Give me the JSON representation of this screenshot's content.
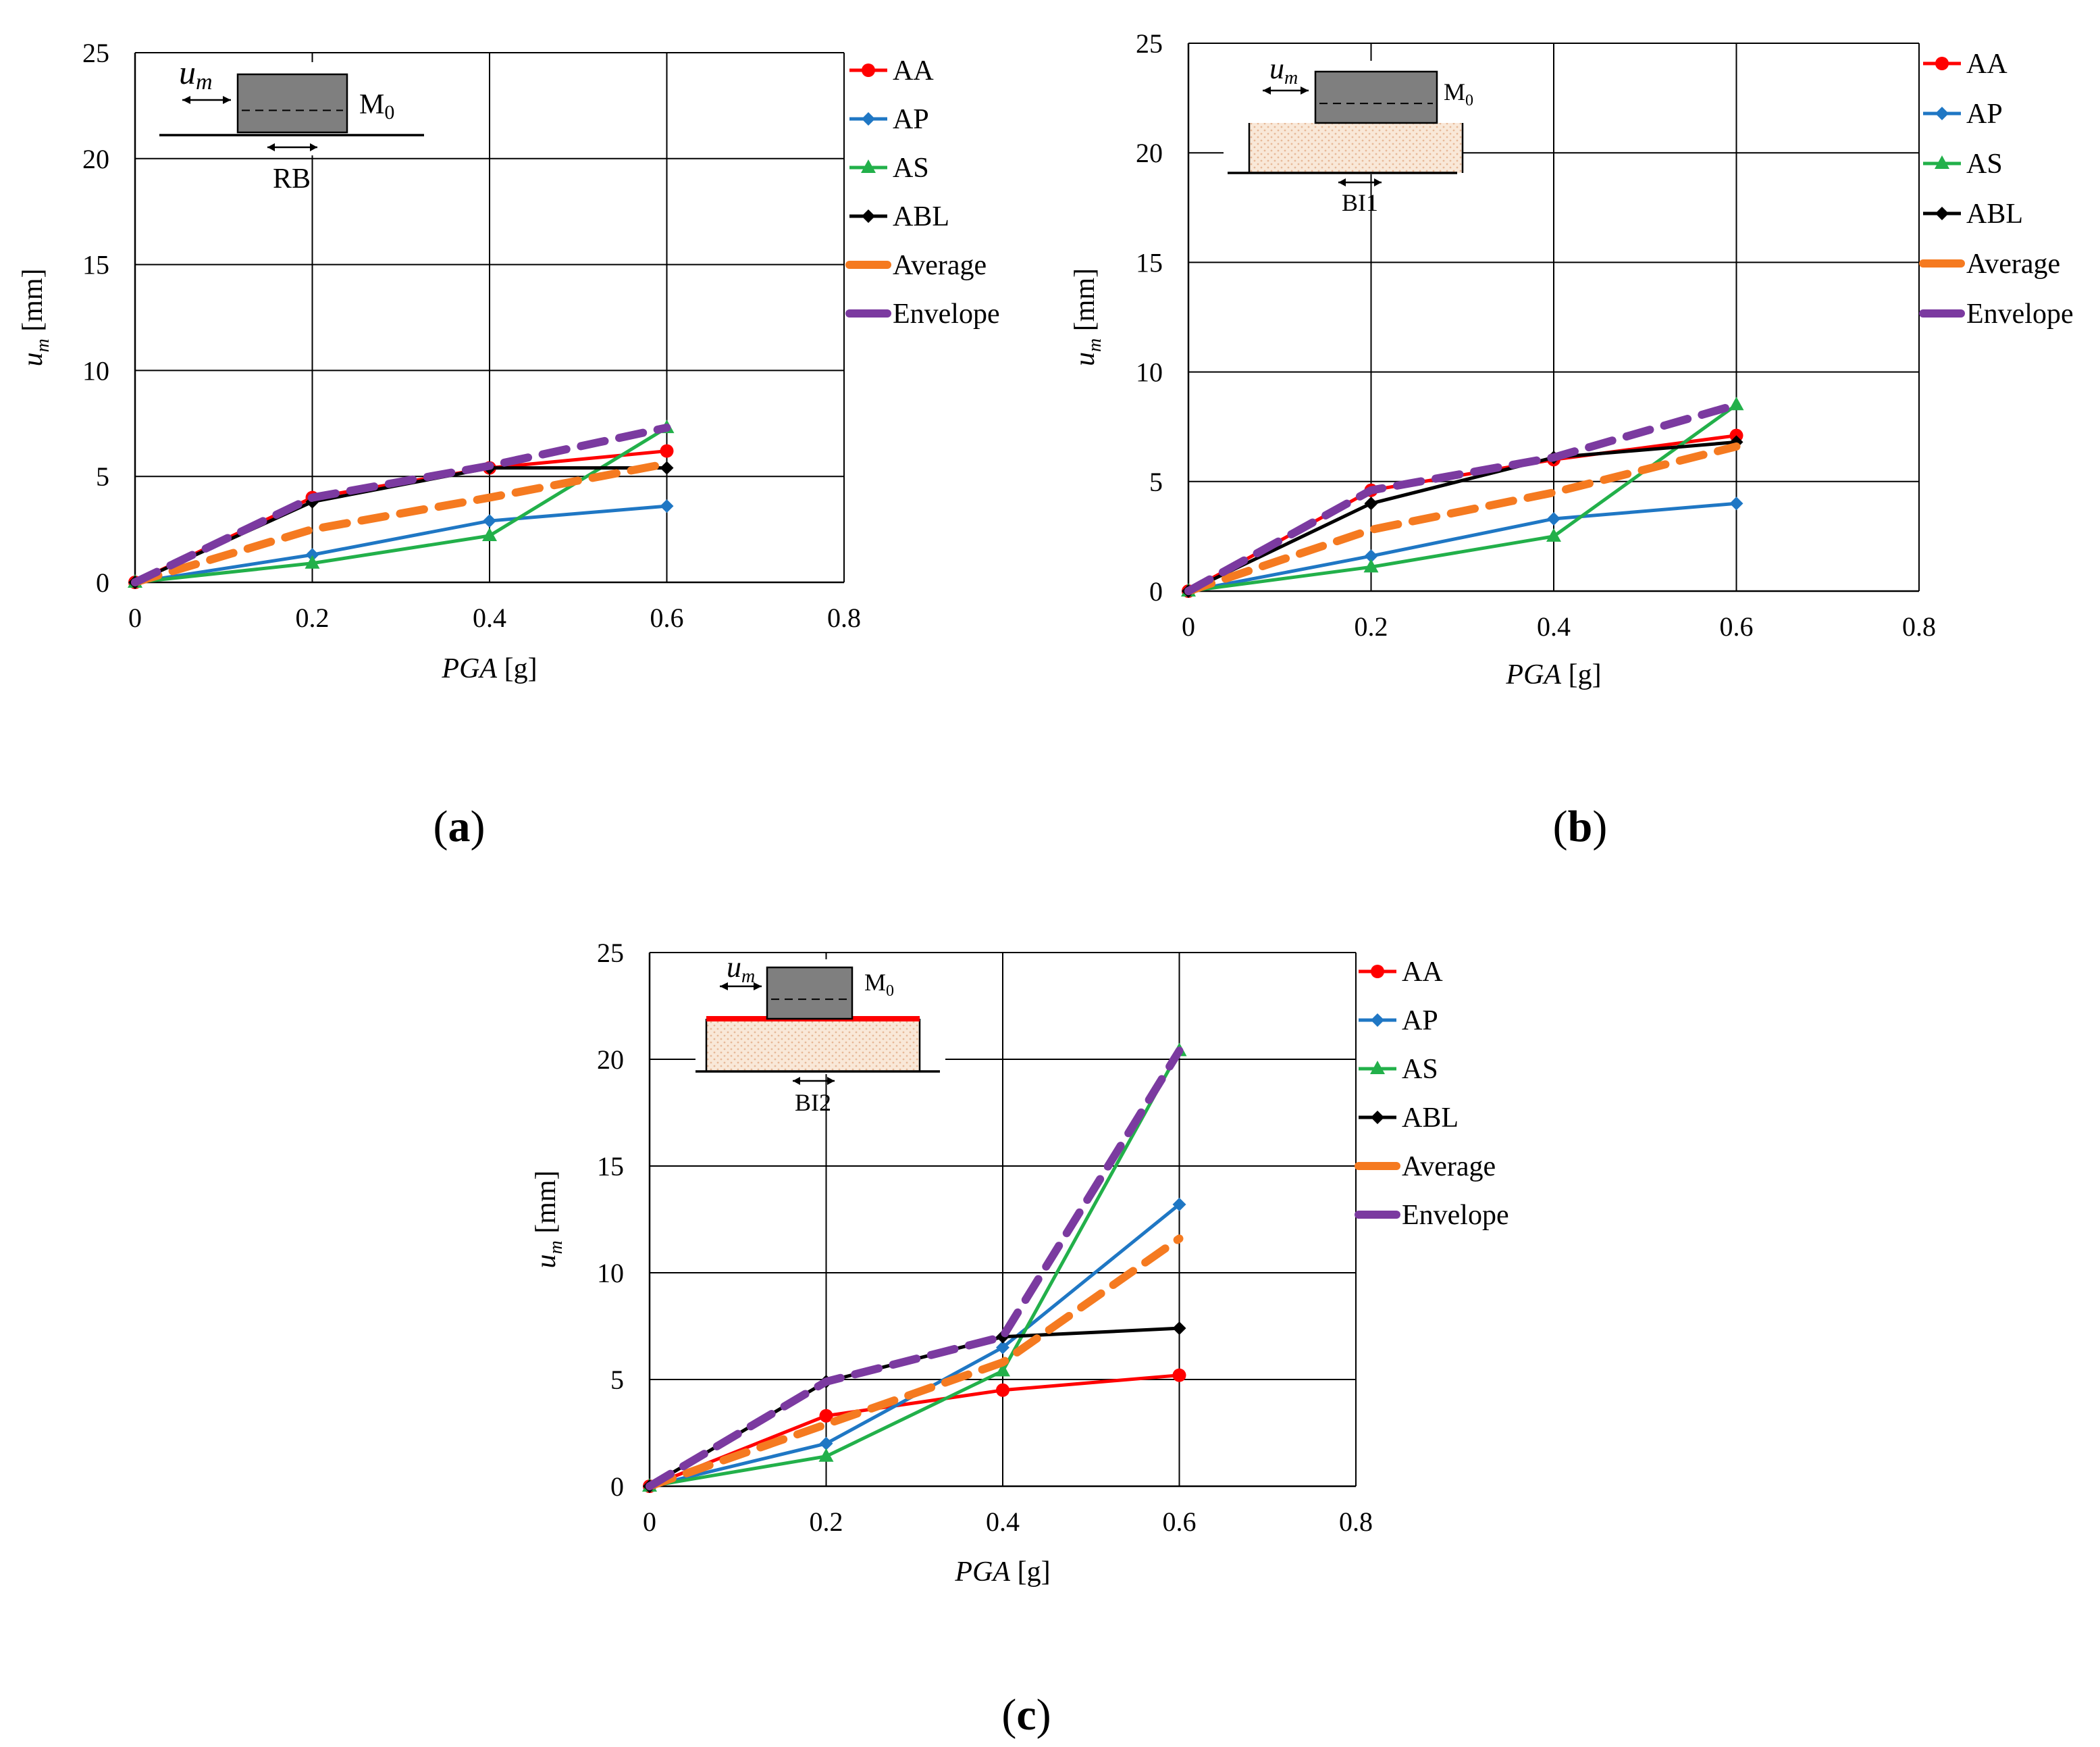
{
  "colors": {
    "AA": "#ff0000",
    "AP": "#1f77c4",
    "AS": "#22b04a",
    "ABL": "#000000",
    "Average": "#f57a20",
    "Envelope": "#7b3aa0",
    "mass": "#7f7f7f",
    "soil": "#f9e8d8",
    "interface_red": "#ff0000"
  },
  "legend_items": [
    "AA",
    "AP",
    "AS",
    "ABL",
    "Average",
    "Envelope"
  ],
  "chart_data": [
    {
      "type": "line",
      "panel_label": "(a)",
      "panel_letter": "a",
      "xlabel_italic": "PGA",
      "xlabel_unit": " [g]",
      "ylabel_var": "u",
      "ylabel_sub": "m",
      "ylabel_unit": " [mm]",
      "xlim": [
        0,
        0.8
      ],
      "ylim": [
        0,
        25
      ],
      "x_ticks": [
        0,
        0.2,
        0.4,
        0.6,
        0.8
      ],
      "x_tick_labels": [
        "0",
        "0.2",
        "0.4",
        "0.6",
        "0.8"
      ],
      "y_ticks": [
        0,
        5,
        10,
        15,
        20,
        25
      ],
      "y_tick_labels": [
        "0",
        "5",
        "10",
        "15",
        "20",
        "25"
      ],
      "x": [
        0,
        0.2,
        0.4,
        0.6
      ],
      "series": [
        {
          "name": "AA",
          "values": [
            0,
            4.0,
            5.4,
            6.2
          ],
          "marker": "circle",
          "dash": false
        },
        {
          "name": "AP",
          "values": [
            0,
            1.3,
            2.9,
            3.6
          ],
          "marker": "diamond",
          "dash": false
        },
        {
          "name": "AS",
          "values": [
            0,
            0.9,
            2.2,
            7.3
          ],
          "marker": "triangle",
          "dash": false
        },
        {
          "name": "ABL",
          "values": [
            0,
            3.8,
            5.4,
            5.4
          ],
          "marker": "diamond",
          "dash": false
        },
        {
          "name": "Average",
          "values": [
            0,
            2.5,
            4.0,
            5.6
          ],
          "marker": "none",
          "dash": true
        },
        {
          "name": "Envelope",
          "values": [
            0,
            4.0,
            5.5,
            7.3
          ],
          "marker": "none",
          "dash": true
        }
      ],
      "inset": {
        "kind": "RB",
        "um": "u",
        "um_sub": "m",
        "mass": "M",
        "mass_sub": "0",
        "label": "RB"
      }
    },
    {
      "type": "line",
      "panel_label": "(b)",
      "panel_letter": "b",
      "xlabel_italic": "PGA",
      "xlabel_unit": " [g]",
      "ylabel_var": "u",
      "ylabel_sub": "m",
      "ylabel_unit": " [mm]",
      "xlim": [
        0,
        0.8
      ],
      "ylim": [
        0,
        25
      ],
      "x_ticks": [
        0,
        0.2,
        0.4,
        0.6,
        0.8
      ],
      "x_tick_labels": [
        "0",
        "0.2",
        "0.4",
        "0.6",
        "0.8"
      ],
      "y_ticks": [
        0,
        5,
        10,
        15,
        20,
        25
      ],
      "y_tick_labels": [
        "0",
        "5",
        "10",
        "15",
        "20",
        "25"
      ],
      "x": [
        0,
        0.2,
        0.4,
        0.6
      ],
      "series": [
        {
          "name": "AA",
          "values": [
            0,
            4.6,
            6.0,
            7.1
          ],
          "marker": "circle",
          "dash": false
        },
        {
          "name": "AP",
          "values": [
            0,
            1.6,
            3.3,
            4.0
          ],
          "marker": "diamond",
          "dash": false
        },
        {
          "name": "AS",
          "values": [
            0,
            1.1,
            2.5,
            8.5
          ],
          "marker": "triangle",
          "dash": false
        },
        {
          "name": "ABL",
          "values": [
            0,
            4.0,
            6.1,
            6.8
          ],
          "marker": "diamond",
          "dash": false
        },
        {
          "name": "Average",
          "values": [
            0,
            2.8,
            4.5,
            6.6
          ],
          "marker": "none",
          "dash": true
        },
        {
          "name": "Envelope",
          "values": [
            0,
            4.6,
            6.1,
            8.5
          ],
          "marker": "none",
          "dash": true
        }
      ],
      "inset": {
        "kind": "BI1",
        "um": "u",
        "um_sub": "m",
        "mass": "M",
        "mass_sub": "0",
        "label": "BI1"
      }
    },
    {
      "type": "line",
      "panel_label": "(c)",
      "panel_letter": "c",
      "xlabel_italic": "PGA",
      "xlabel_unit": " [g]",
      "ylabel_var": "u",
      "ylabel_sub": "m",
      "ylabel_unit": " [mm]",
      "xlim": [
        0,
        0.8
      ],
      "ylim": [
        0,
        25
      ],
      "x_ticks": [
        0,
        0.2,
        0.4,
        0.6,
        0.8
      ],
      "x_tick_labels": [
        "0",
        "0.2",
        "0.4",
        "0.6",
        "0.8"
      ],
      "y_ticks": [
        0,
        5,
        10,
        15,
        20,
        25
      ],
      "y_tick_labels": [
        "0",
        "5",
        "10",
        "15",
        "20",
        "25"
      ],
      "x": [
        0,
        0.2,
        0.4,
        0.6
      ],
      "series": [
        {
          "name": "AA",
          "values": [
            0,
            3.3,
            4.5,
            5.2
          ],
          "marker": "circle",
          "dash": false
        },
        {
          "name": "AP",
          "values": [
            0,
            2.0,
            6.5,
            13.2
          ],
          "marker": "diamond",
          "dash": false
        },
        {
          "name": "AS",
          "values": [
            0,
            1.4,
            5.4,
            20.4
          ],
          "marker": "triangle",
          "dash": false
        },
        {
          "name": "ABL",
          "values": [
            0,
            4.9,
            7.0,
            7.4
          ],
          "marker": "diamond",
          "dash": false
        },
        {
          "name": "Average",
          "values": [
            0,
            2.9,
            5.8,
            11.6
          ],
          "marker": "none",
          "dash": true
        },
        {
          "name": "Envelope",
          "values": [
            0,
            4.9,
            7.0,
            20.4
          ],
          "marker": "none",
          "dash": true
        }
      ],
      "inset": {
        "kind": "BI2",
        "um": "u",
        "um_sub": "m",
        "mass": "M",
        "mass_sub": "0",
        "label": "BI2"
      }
    }
  ]
}
